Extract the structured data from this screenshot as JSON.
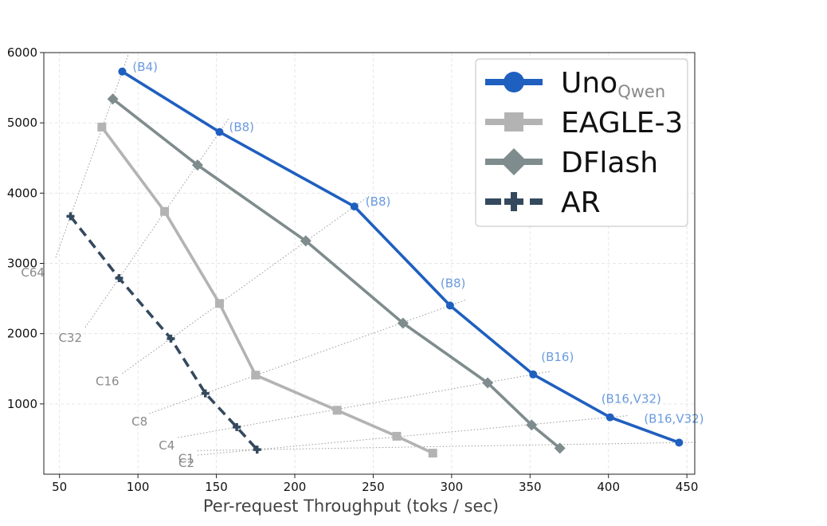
{
  "chart_data": {
    "type": "line",
    "title": "",
    "xlabel": "Per-request Throughput (toks / sec)",
    "ylabel": "",
    "xlim": [
      40,
      455
    ],
    "ylim": [
      0,
      6000
    ],
    "xticks": [
      "50",
      "100",
      "150",
      "200",
      "250",
      "300",
      "350",
      "400",
      "450"
    ],
    "yticks": [
      "1000",
      "2000",
      "3000",
      "4000",
      "5000",
      "6000"
    ],
    "grid": true,
    "legend_position": "top-right",
    "series": [
      {
        "name": "Uno",
        "name_sub": "Qwen",
        "color": "#1f5fbf",
        "marker": "circle",
        "dash": "solid",
        "points": [
          {
            "x": 90,
            "y": 5730
          },
          {
            "x": 152,
            "y": 4870
          },
          {
            "x": 238,
            "y": 3810
          },
          {
            "x": 299,
            "y": 2400
          },
          {
            "x": 352,
            "y": 1420
          },
          {
            "x": 401,
            "y": 810
          },
          {
            "x": 445,
            "y": 450
          }
        ]
      },
      {
        "name": "EAGLE-3",
        "color": "#b3b3b3",
        "marker": "square",
        "dash": "solid",
        "points": [
          {
            "x": 77,
            "y": 4940
          },
          {
            "x": 117,
            "y": 3740
          },
          {
            "x": 152,
            "y": 2430
          },
          {
            "x": 175,
            "y": 1410
          },
          {
            "x": 227,
            "y": 910
          },
          {
            "x": 265,
            "y": 540
          },
          {
            "x": 288,
            "y": 300
          }
        ]
      },
      {
        "name": "DFlash",
        "color": "#7f8c8d",
        "marker": "diamond",
        "dash": "solid",
        "points": [
          {
            "x": 84,
            "y": 5340
          },
          {
            "x": 138,
            "y": 4400
          },
          {
            "x": 207,
            "y": 3320
          },
          {
            "x": 269,
            "y": 2150
          },
          {
            "x": 323,
            "y": 1300
          },
          {
            "x": 351,
            "y": 700
          },
          {
            "x": 369,
            "y": 370
          }
        ]
      },
      {
        "name": "AR",
        "color": "#34495e",
        "marker": "plus",
        "dash": "dashed",
        "points": [
          {
            "x": 57,
            "y": 3670
          },
          {
            "x": 88,
            "y": 2790
          },
          {
            "x": 121,
            "y": 1930
          },
          {
            "x": 143,
            "y": 1150
          },
          {
            "x": 163,
            "y": 670
          },
          {
            "x": 176,
            "y": 350
          }
        ]
      }
    ],
    "point_labels": [
      {
        "text": "(B4)",
        "x": 90,
        "y": 5730
      },
      {
        "text": "(B8)",
        "x": 152,
        "y": 4870
      },
      {
        "text": "(B8)",
        "x": 238,
        "y": 3810
      },
      {
        "text": "(B8)",
        "x": 299,
        "y": 2400
      },
      {
        "text": "(B16)",
        "x": 352,
        "y": 1420
      },
      {
        "text": "(B16,V32)",
        "x": 401,
        "y": 810
      },
      {
        "text": "(B16,V32)",
        "x": 445,
        "y": 450
      }
    ],
    "concurrency_labels": [
      "C64",
      "C32",
      "C16",
      "C8",
      "C4",
      "C2",
      "C1"
    ]
  }
}
